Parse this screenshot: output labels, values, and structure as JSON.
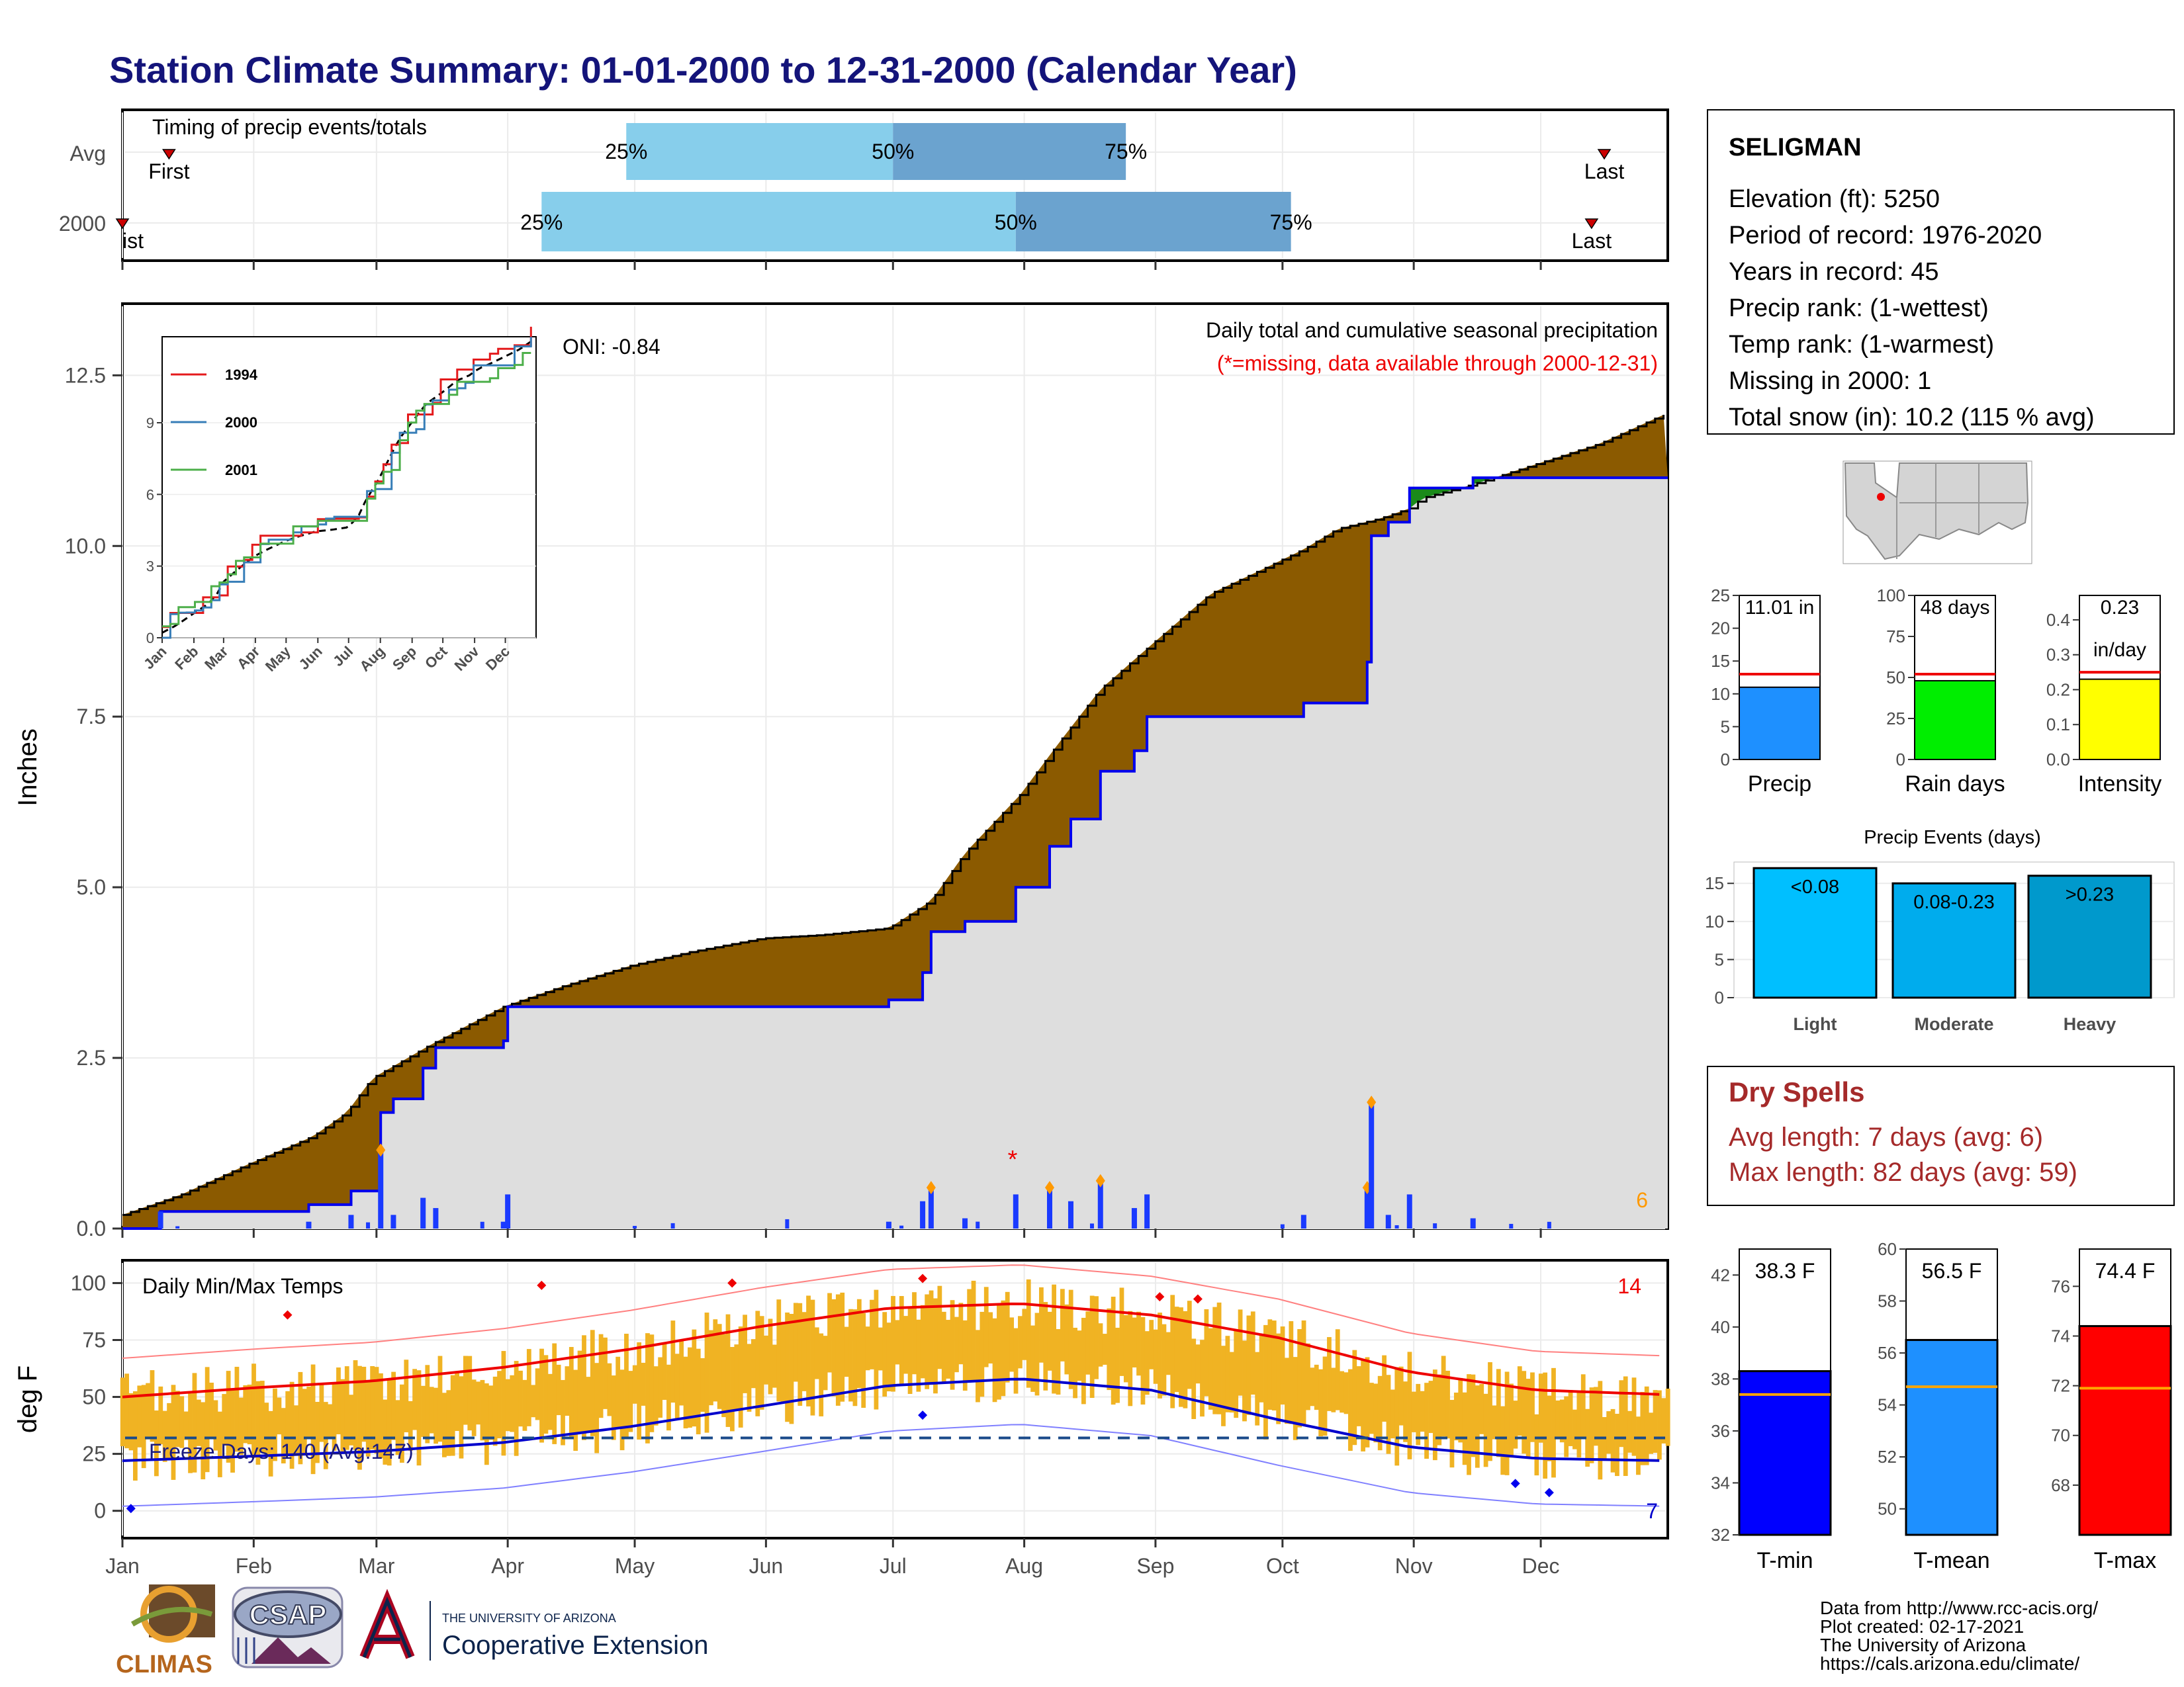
{
  "page_title": "Station Climate Summary: 01-01-2000 to 12-31-2000 (Calendar Year)",
  "timing": {
    "label": "Timing of precip events/totals",
    "rows": [
      {
        "name": "Avg",
        "first_day": 12,
        "p25_day": 120,
        "p50_day": 183,
        "p75_day": 238,
        "last_day": 351
      },
      {
        "name": "2000",
        "first_day": 1,
        "p25_day": 100,
        "p50_day": 212,
        "p75_day": 277,
        "last_day": 348
      }
    ],
    "first_label": "First",
    "last_label": "Last",
    "first_label_2000": "ist",
    "p25": "25%",
    "p50": "50%",
    "p75": "75%"
  },
  "months": [
    "Jan",
    "Feb",
    "Mar",
    "Apr",
    "May",
    "Jun",
    "Jul",
    "Aug",
    "Sep",
    "Oct",
    "Nov",
    "Dec"
  ],
  "main_chart": {
    "ylabel": "Inches",
    "yticks": [
      "0.0",
      "2.5",
      "5.0",
      "7.5",
      "10.0",
      "12.5"
    ],
    "title_right": "Daily total and cumulative seasonal precipitation",
    "note_right": "(*=missing, data available through 2000-12-31)",
    "oni": "ONI: -0.84",
    "corner_count": "6"
  },
  "inset": {
    "yticks": [
      "0",
      "3",
      "6",
      "9"
    ],
    "months": [
      "Jan",
      "Feb",
      "Mar",
      "Apr",
      "May",
      "Jun",
      "Jul",
      "Aug",
      "Sep",
      "Oct",
      "Nov",
      "Dec"
    ],
    "legend": [
      {
        "name": "1994",
        "color": "#e41a1c"
      },
      {
        "name": "2000",
        "color": "#377eb8"
      },
      {
        "name": "2001",
        "color": "#4daf4a"
      }
    ]
  },
  "temp_chart": {
    "ylabel": "deg F",
    "title": "Daily Min/Max Temps",
    "yticks": [
      "0",
      "25",
      "50",
      "75",
      "100"
    ],
    "count_hot": "14",
    "count_cold": "7",
    "freeze": "Freeze Days: 140 (Avg:147)"
  },
  "station": {
    "name": "SELIGMAN",
    "lines": [
      "Elevation (ft): 5250",
      "Period of record: 1976-2020",
      "Years in record: 45",
      "Precip rank:  (1-wettest)",
      "Temp rank:  (1-warmest)",
      "Missing in 2000: 1",
      "Total snow (in): 10.2 (115 % avg)"
    ]
  },
  "mini_bars": [
    {
      "label": "Precip",
      "value": 11.01,
      "text": "11.01 in",
      "avg": 13,
      "max": 25,
      "ticks": [
        "0",
        "5",
        "10",
        "15",
        "20",
        "25"
      ],
      "color": "#1e90ff"
    },
    {
      "label": "Rain days",
      "value": 48,
      "text": "48 days",
      "avg": 52,
      "max": 100,
      "ticks": [
        "0",
        "25",
        "50",
        "75",
        "100"
      ],
      "color": "#00ee00"
    },
    {
      "label": "Intensity",
      "value": 0.23,
      "text": "0.23",
      "text2": "in/day",
      "avg": 0.25,
      "max": 0.47,
      "ticks": [
        "0.0",
        "0.1",
        "0.2",
        "0.3",
        "0.4"
      ],
      "color": "#ffff00"
    }
  ],
  "precip_events": {
    "title": "Precip Events (days)",
    "yticks": [
      "0",
      "5",
      "10",
      "15"
    ],
    "bars": [
      {
        "cat": "Light",
        "label": "<0.08",
        "value": 17,
        "color": "#00bfff"
      },
      {
        "cat": "Moderate",
        "label": "0.08-0.23",
        "value": 15,
        "color": "#00aced"
      },
      {
        "cat": "Heavy",
        "label": ">0.23",
        "value": 16,
        "color": "#0099cc"
      }
    ]
  },
  "dry_spells": {
    "title": "Dry Spells",
    "avg": "Avg length: 7 days (avg: 6)",
    "max": "Max length: 82 days (avg: 59)"
  },
  "temp_bars": [
    {
      "label": "T-min",
      "text": "38.3 F",
      "value": 38.3,
      "avg": 37.4,
      "min": 32,
      "max": 43,
      "ticks": [
        "32",
        "34",
        "36",
        "38",
        "40",
        "42"
      ],
      "color": "#0000ff"
    },
    {
      "label": "T-mean",
      "text": "56.5 F",
      "value": 56.5,
      "avg": 54.7,
      "min": 49,
      "max": 60,
      "ticks": [
        "50",
        "52",
        "54",
        "56",
        "58",
        "60"
      ],
      "color": "#1e90ff"
    },
    {
      "label": "T-max",
      "text": "74.4 F",
      "value": 74.4,
      "avg": 71.9,
      "min": 66,
      "max": 77.5,
      "ticks": [
        "68",
        "70",
        "72",
        "74",
        "76"
      ],
      "color": "#ff0000"
    }
  ],
  "footer": {
    "lines": [
      "Data from http://www.rcc-acis.org/",
      "Plot created: 02-17-2021",
      "The University of Arizona",
      "https://cals.arizona.edu/climate/"
    ],
    "logo_climas": "CLIMAS",
    "logo_csap": "CSAP",
    "logo_ua_small": "THE UNIVERSITY OF ARIZONA",
    "logo_ua_big": "Cooperative Extension"
  },
  "chart_data": [
    {
      "type": "area",
      "title": "Daily total and cumulative seasonal precipitation",
      "ylabel": "Inches",
      "ylim": [
        0,
        13.5
      ],
      "series": [
        {
          "name": "",
          "x": [
            1,
            15,
            31,
            46,
            54,
            60,
            74,
            91,
            105,
            121,
            135,
            152,
            166,
            182,
            192,
            200,
            213,
            222,
            232,
            244,
            258,
            270,
            280,
            288,
            298,
            305,
            308,
            320,
            335,
            350,
            366
          ],
          "values": [
            0.2,
            0.5,
            0.95,
            1.35,
            1.7,
            2.2,
            2.7,
            3.25,
            3.55,
            3.85,
            4.05,
            4.25,
            4.3,
            4.4,
            4.8,
            5.5,
            6.35,
            7.1,
            7.9,
            8.55,
            9.3,
            9.65,
            9.95,
            10.25,
            10.4,
            10.55,
            10.7,
            10.9,
            11.2,
            11.5,
            11.95
          ]
        },
        {
          "name": "",
          "x": [
            1,
            10,
            30,
            45,
            55,
            62,
            65,
            72,
            75,
            91,
            92,
            120,
            145,
            170,
            180,
            182,
            190,
            192,
            200,
            210,
            212,
            220,
            225,
            232,
            240,
            243,
            250,
            280,
            295,
            296,
            300,
            305,
            320,
            335,
            366
          ],
          "values": [
            0.0,
            0.25,
            0.25,
            0.35,
            0.55,
            1.7,
            1.9,
            2.35,
            2.65,
            2.75,
            3.25,
            3.25,
            3.25,
            3.25,
            3.25,
            3.35,
            3.75,
            4.35,
            4.5,
            4.5,
            5.0,
            5.6,
            6.0,
            6.7,
            7.0,
            7.5,
            7.5,
            7.7,
            8.3,
            10.15,
            10.35,
            10.85,
            11.0,
            11.0,
            11.0
          ]
        }
      ]
    },
    {
      "type": "line",
      "title": "Daily Min/Max Temps",
      "ylabel": "deg F",
      "ylim": [
        -10,
        110
      ],
      "x": [
        1,
        32,
        60,
        91,
        121,
        152,
        182,
        213,
        244,
        274,
        305,
        335,
        366
      ],
      "series": [
        {
          "name": "",
          "values": [
            50,
            54,
            57,
            63,
            71,
            81,
            89,
            91,
            86,
            76,
            61,
            53,
            51
          ]
        },
        {
          "name": "",
          "values": [
            22,
            24,
            26,
            30,
            37,
            46,
            55,
            58,
            53,
            40,
            28,
            23,
            22
          ]
        }
      ]
    }
  ]
}
